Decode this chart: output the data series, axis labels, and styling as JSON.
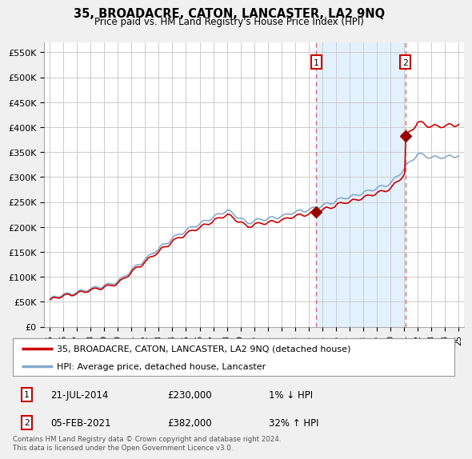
{
  "title": "35, BROADACRE, CATON, LANCASTER, LA2 9NQ",
  "subtitle": "Price paid vs. HM Land Registry's House Price Index (HPI)",
  "ylabel_ticks": [
    "£0",
    "£50K",
    "£100K",
    "£150K",
    "£200K",
    "£250K",
    "£300K",
    "£350K",
    "£400K",
    "£450K",
    "£500K",
    "£550K"
  ],
  "ytick_values": [
    0,
    50000,
    100000,
    150000,
    200000,
    250000,
    300000,
    350000,
    400000,
    450000,
    500000,
    550000
  ],
  "ylim": [
    0,
    570000
  ],
  "sale1_x": 2014.55,
  "sale1_y": 230000,
  "sale2_x": 2021.09,
  "sale2_y": 382000,
  "vline1_x": 2014.55,
  "vline2_x": 2021.09,
  "xtick_years": [
    1995,
    1996,
    1997,
    1998,
    1999,
    2000,
    2001,
    2002,
    2003,
    2004,
    2005,
    2006,
    2007,
    2008,
    2009,
    2010,
    2011,
    2012,
    2013,
    2014,
    2015,
    2016,
    2017,
    2018,
    2019,
    2020,
    2021,
    2022,
    2023,
    2024,
    2025
  ],
  "sale_line_color": "#cc0000",
  "hpi_line_color": "#88aacc",
  "vline_color": "#dd4444",
  "marker_color": "#990000",
  "shade_color": "#ddeeff",
  "legend_label_sale": "35, BROADACRE, CATON, LANCASTER, LA2 9NQ (detached house)",
  "legend_label_hpi": "HPI: Average price, detached house, Lancaster",
  "annotation1_date": "21-JUL-2014",
  "annotation1_price": "£230,000",
  "annotation1_hpi": "1% ↓ HPI",
  "annotation2_date": "05-FEB-2021",
  "annotation2_price": "£382,000",
  "annotation2_hpi": "32% ↑ HPI",
  "footer": "Contains HM Land Registry data © Crown copyright and database right 2024.\nThis data is licensed under the Open Government Licence v3.0.",
  "bg_color": "#f0f0f0",
  "plot_bg_color": "#ffffff",
  "grid_color": "#cccccc"
}
